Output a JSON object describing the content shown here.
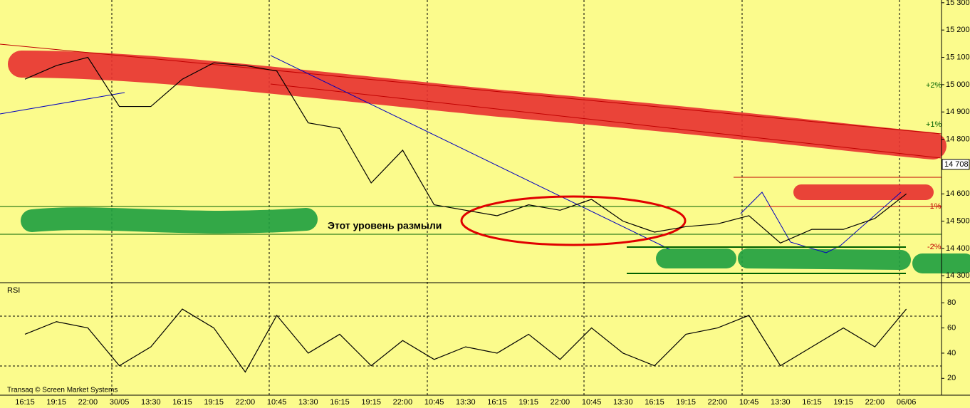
{
  "chart_data": [
    {
      "type": "line",
      "annotations": [
        "Этот уровень размыли",
        "+2%",
        "+1%",
        "-1%",
        "-2%"
      ],
      "last_price": {
        "value": 14708,
        "label": "14 708"
      },
      "categories": [
        "16:15",
        "19:15",
        "22:00",
        "30/05",
        "13:30",
        "16:15",
        "19:15",
        "22:00",
        "10:45",
        "13:30",
        "16:15",
        "19:15",
        "22:00",
        "10:45",
        "13:30",
        "16:15",
        "19:15",
        "22:00",
        "10:45",
        "13:30",
        "16:15",
        "19:15",
        "22:00",
        "10:45",
        "13:30",
        "16:15",
        "19:15",
        "22:00",
        "06/06"
      ],
      "series": [
        {
          "color": "#000000",
          "values": [
            15020,
            15070,
            15100,
            14920,
            14920,
            15020,
            15080,
            15070,
            15050,
            14860,
            14840,
            14640,
            14760,
            14560,
            14540,
            14520,
            14560,
            14540,
            14580,
            14500,
            14460,
            14480,
            14490,
            14520,
            14420,
            14470,
            14470,
            14510,
            14600
          ]
        }
      ],
      "ylim": [
        14280,
        15310
      ],
      "yticks": [
        {
          "value": 14300,
          "label": "14 300"
        },
        {
          "value": 14400,
          "label": "14 400"
        },
        {
          "value": 14500,
          "label": "14 500"
        },
        {
          "value": 14600,
          "label": "14 600"
        },
        {
          "value": 14700,
          "label": "14 700"
        },
        {
          "value": 14800,
          "label": "14 800"
        },
        {
          "value": 14900,
          "label": "14 900"
        },
        {
          "value": 15000,
          "label": "15 000"
        },
        {
          "value": 15100,
          "label": "15 100"
        },
        {
          "value": 15200,
          "label": "15 200"
        },
        {
          "value": 15300,
          "label": "15 300"
        }
      ]
    },
    {
      "type": "line",
      "title": "RSI",
      "source": "Transaq © Screen Market Systems",
      "series": [
        {
          "color": "#000000",
          "values": [
            55,
            65,
            60,
            30,
            45,
            75,
            60,
            25,
            70,
            40,
            55,
            30,
            50,
            35,
            45,
            40,
            55,
            35,
            60,
            40,
            30,
            55,
            60,
            70,
            30,
            45,
            60,
            45,
            75
          ]
        }
      ],
      "ylim": [
        10,
        92
      ],
      "yticks": [
        20,
        40,
        60,
        80
      ]
    }
  ]
}
